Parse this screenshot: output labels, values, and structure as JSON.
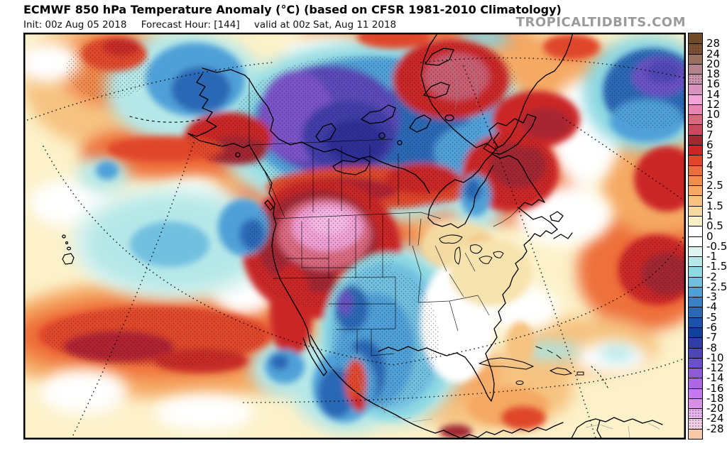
{
  "header": {
    "title": "ECMWF 850 hPa Temperature Anomaly (°C) (based on CFSR 1981-2010 Climatology)",
    "init": "Init: 00z Aug 05 2018",
    "forecast_hour": "Forecast Hour: [144]",
    "valid": "valid at 00z Sat, Aug 11 2018",
    "watermark": "TROPICALTIDBITS.COM"
  },
  "colorbar": {
    "tick_labels": [
      "28",
      "24",
      "20",
      "18",
      "16",
      "14",
      "12",
      "10",
      "8",
      "7",
      "6",
      "5",
      "4",
      "3",
      "2.5",
      "2",
      "1.5",
      "1",
      "0.5",
      "0",
      "-0.5",
      "-1",
      "-1.5",
      "-2",
      "-2.5",
      "-3",
      "-4",
      "-5",
      "-6",
      "-7",
      "-8",
      "-10",
      "-12",
      "-14",
      "-16",
      "-18",
      "-20",
      "-24",
      "-28"
    ],
    "cells": [
      {
        "color": "#6e4a28",
        "dotted": false
      },
      {
        "color": "#7c5235",
        "dotted": true
      },
      {
        "color": "#99705d",
        "dotted": false
      },
      {
        "color": "#b2838b",
        "dotted": false
      },
      {
        "color": "#c897ad",
        "dotted": true
      },
      {
        "color": "#d892bd",
        "dotted": false
      },
      {
        "color": "#f2a3d9",
        "dotted": false
      },
      {
        "color": "#e784b0",
        "dotted": false
      },
      {
        "color": "#d9687f",
        "dotted": false
      },
      {
        "color": "#c84a60",
        "dotted": false
      },
      {
        "color": "#a12833",
        "dotted": false
      },
      {
        "color": "#cb2526",
        "dotted": false
      },
      {
        "color": "#e0462c",
        "dotted": false
      },
      {
        "color": "#ec6e3d",
        "dotted": false
      },
      {
        "color": "#f28c4d",
        "dotted": false
      },
      {
        "color": "#f5a963",
        "dotted": false
      },
      {
        "color": "#f6c381",
        "dotted": false
      },
      {
        "color": "#f3daa2",
        "dotted": false
      },
      {
        "color": "#faf0c6",
        "dotted": false
      },
      {
        "color": "#ffffff",
        "dotted": false
      },
      {
        "color": "#ffffff",
        "dotted": false
      },
      {
        "color": "#def4f0",
        "dotted": false
      },
      {
        "color": "#b5e8e8",
        "dotted": false
      },
      {
        "color": "#90d8e2",
        "dotted": false
      },
      {
        "color": "#70bfe0",
        "dotted": false
      },
      {
        "color": "#4fa0d8",
        "dotted": false
      },
      {
        "color": "#3a80c4",
        "dotted": false
      },
      {
        "color": "#2a67b5",
        "dotted": false
      },
      {
        "color": "#1c52ab",
        "dotted": false
      },
      {
        "color": "#10409a",
        "dotted": false
      },
      {
        "color": "#303da5",
        "dotted": false
      },
      {
        "color": "#4f46b6",
        "dotted": false
      },
      {
        "color": "#6b51c6",
        "dotted": false
      },
      {
        "color": "#8e5bd8",
        "dotted": false
      },
      {
        "color": "#ad66e6",
        "dotted": false
      },
      {
        "color": "#c878ee",
        "dotted": false
      },
      {
        "color": "#d88fe8",
        "dotted": false
      },
      {
        "color": "#e7b5ee",
        "dotted": true
      },
      {
        "color": "#f0d0e8",
        "dotted": true
      },
      {
        "color": "#f8c9a8",
        "dotted": false
      }
    ]
  },
  "map": {
    "region": "North America and adjacent oceans",
    "features": [
      "Strong warm anomaly (+6 to +12 C, pink core) over the Pacific Northwest and northern Rockies",
      "Cold anomaly (-3 to -8 C) from Colorado and New Mexico across Texas into northern Mexico",
      "Deep cold anomaly (-6 to -12 C, purple) over the Canadian Arctic Archipelago and Northwest Territories",
      "Warm anomaly band (+4 to +7 C) across central Canada into Labrador",
      "Warm anomaly over Greenland",
      "Cold anomaly over the Bering Sea and western Alaska",
      "Warm anomaly (+5 to +8 C) over the Gulf of Alaska",
      "Cold pool (-1 to -4 C) in the central North Pacific",
      "Warm band (+3 to +6 C) across the subtropical central Pacific",
      "Deep cold anomaly (blue-purple) in the far North Atlantic at the upper right edge",
      "Warm anomaly (+5 to +7 C) in the central North Atlantic at the right edge",
      "Near-normal conditions (white, within 0.5 C) over the southeastern U.S. and subtropical Atlantic"
    ]
  }
}
